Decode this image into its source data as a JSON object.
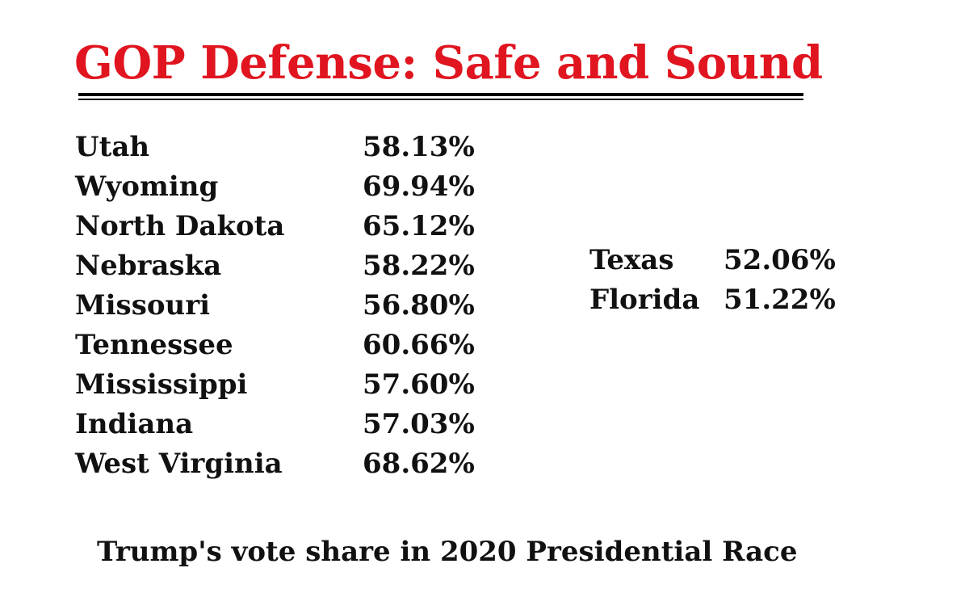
{
  "colors": {
    "title": "#e0151f",
    "text": "#111111",
    "background": "#ffffff",
    "rule": "#000000"
  },
  "chart_data": {
    "type": "table",
    "title": "GOP Defense: Safe and Sound",
    "caption": "Trump's vote share in 2020 Presidential Race",
    "columns": [
      {
        "rows": [
          {
            "state": "Utah",
            "value": 58.13,
            "label": "58.13%"
          },
          {
            "state": "Wyoming",
            "value": 69.94,
            "label": "69.94%"
          },
          {
            "state": "North Dakota",
            "value": 65.12,
            "label": "65.12%"
          },
          {
            "state": "Nebraska",
            "value": 58.22,
            "label": "58.22%"
          },
          {
            "state": "Missouri",
            "value": 56.8,
            "label": "56.80%"
          },
          {
            "state": "Tennessee",
            "value": 60.66,
            "label": "60.66%"
          },
          {
            "state": "Mississippi",
            "value": 57.6,
            "label": "57.60%"
          },
          {
            "state": "Indiana",
            "value": 57.03,
            "label": "57.03%"
          },
          {
            "state": "West Virginia",
            "value": 68.62,
            "label": "68.62%"
          }
        ]
      },
      {
        "rows": [
          {
            "state": "Texas",
            "value": 52.06,
            "label": "52.06%"
          },
          {
            "state": "Florida",
            "value": 51.22,
            "label": "51.22%"
          }
        ]
      }
    ]
  }
}
